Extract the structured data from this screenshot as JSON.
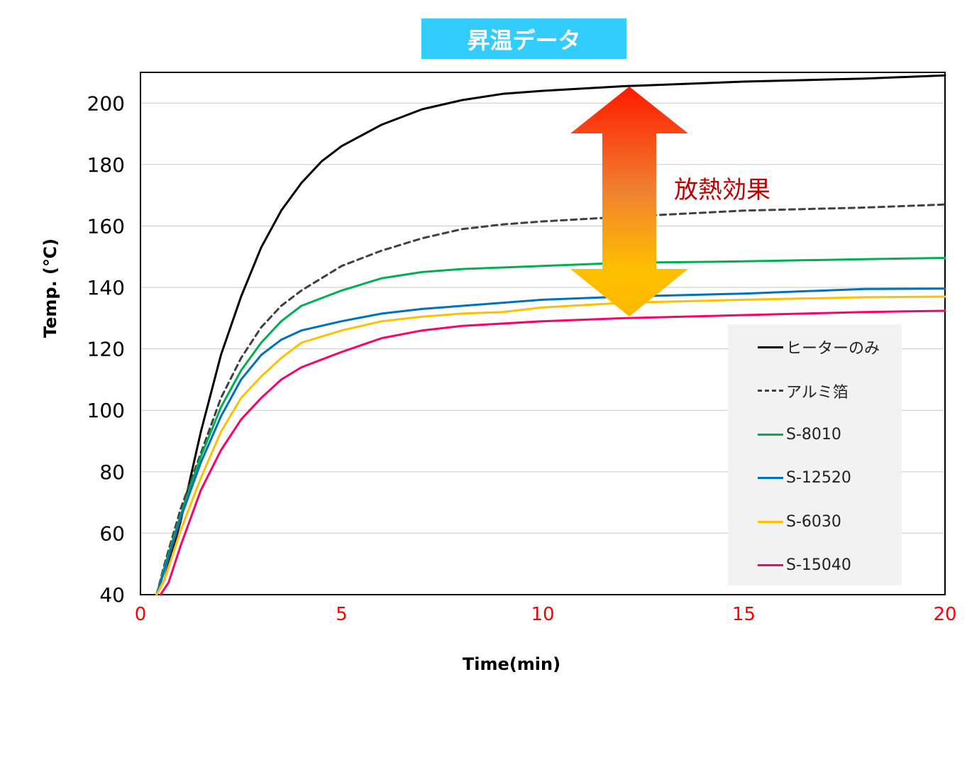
{
  "header": {
    "title": "昇温データ"
  },
  "annotation": {
    "text": "放熱効果"
  },
  "chart_data": {
    "type": "line",
    "xlabel": "Time(min)",
    "ylabel": "Temp. (℃)",
    "xlim": [
      0,
      20
    ],
    "ylim": [
      40,
      210
    ],
    "x_ticks": [
      0,
      5,
      10,
      15,
      20
    ],
    "y_ticks": [
      40,
      60,
      80,
      100,
      120,
      140,
      160,
      180,
      200
    ],
    "grid": "horizontal",
    "legend_position": "bottom-right",
    "series": [
      {
        "name": "ヒーターのみ",
        "color": "#000000",
        "dash": "solid",
        "points": [
          [
            0.4,
            40
          ],
          [
            0.6,
            45
          ],
          [
            1.0,
            64
          ],
          [
            1.5,
            93
          ],
          [
            2.0,
            118
          ],
          [
            2.5,
            137
          ],
          [
            3.0,
            153
          ],
          [
            3.5,
            165
          ],
          [
            4.0,
            174
          ],
          [
            4.5,
            181
          ],
          [
            5.0,
            186
          ],
          [
            6.0,
            193
          ],
          [
            7.0,
            198
          ],
          [
            8.0,
            201
          ],
          [
            9.0,
            203
          ],
          [
            10.0,
            204
          ],
          [
            12.0,
            205.5
          ],
          [
            15.0,
            207
          ],
          [
            18.0,
            208
          ],
          [
            20.0,
            209
          ]
        ]
      },
      {
        "name": "アルミ箔",
        "color": "#404040",
        "dash": "dashed",
        "points": [
          [
            0.4,
            40
          ],
          [
            0.6,
            50
          ],
          [
            1.0,
            68
          ],
          [
            1.5,
            86
          ],
          [
            2.0,
            104
          ],
          [
            2.5,
            117
          ],
          [
            3.0,
            127
          ],
          [
            3.5,
            134
          ],
          [
            4.0,
            139
          ],
          [
            5.0,
            147
          ],
          [
            6.0,
            152
          ],
          [
            7.0,
            156
          ],
          [
            8.0,
            159
          ],
          [
            9.0,
            160.5
          ],
          [
            10.0,
            161.5
          ],
          [
            12.0,
            163
          ],
          [
            15.0,
            165
          ],
          [
            18.0,
            166
          ],
          [
            20.0,
            167
          ]
        ]
      },
      {
        "name": "S-8010",
        "color": "#00b050",
        "dash": "solid",
        "points": [
          [
            0.4,
            40
          ],
          [
            0.6,
            49
          ],
          [
            1.0,
            66
          ],
          [
            1.5,
            85
          ],
          [
            2.0,
            101
          ],
          [
            2.5,
            113
          ],
          [
            3.0,
            122
          ],
          [
            3.5,
            129
          ],
          [
            4.0,
            134
          ],
          [
            5.0,
            139
          ],
          [
            6.0,
            143
          ],
          [
            7.0,
            145
          ],
          [
            8.0,
            146
          ],
          [
            10.0,
            147
          ],
          [
            12.0,
            148
          ],
          [
            15.0,
            148.5
          ],
          [
            18.0,
            149.2
          ],
          [
            20.0,
            149.6
          ]
        ]
      },
      {
        "name": "S-12520",
        "color": "#0070c0",
        "dash": "solid",
        "points": [
          [
            0.4,
            40
          ],
          [
            0.6,
            48
          ],
          [
            1.0,
            65
          ],
          [
            1.5,
            83
          ],
          [
            2.0,
            98
          ],
          [
            2.5,
            110
          ],
          [
            3.0,
            118
          ],
          [
            3.5,
            123
          ],
          [
            4.0,
            126
          ],
          [
            5.0,
            129
          ],
          [
            6.0,
            131.5
          ],
          [
            7.0,
            133
          ],
          [
            8.0,
            134
          ],
          [
            10.0,
            136
          ],
          [
            12.0,
            137
          ],
          [
            15.0,
            138
          ],
          [
            18.0,
            139.5
          ],
          [
            20.0,
            139.6
          ]
        ]
      },
      {
        "name": "S-6030",
        "color": "#ffc000",
        "dash": "solid",
        "points": [
          [
            0.4,
            40
          ],
          [
            0.6,
            45
          ],
          [
            1.0,
            61
          ],
          [
            1.5,
            78
          ],
          [
            2.0,
            93
          ],
          [
            2.5,
            104
          ],
          [
            3.0,
            111
          ],
          [
            3.5,
            117
          ],
          [
            4.0,
            122
          ],
          [
            5.0,
            126
          ],
          [
            6.0,
            129
          ],
          [
            7.0,
            130.5
          ],
          [
            8.0,
            131.5
          ],
          [
            9.0,
            132
          ],
          [
            10.0,
            133.5
          ],
          [
            12.0,
            135
          ],
          [
            15.0,
            136
          ],
          [
            18.0,
            136.8
          ],
          [
            20.0,
            137
          ]
        ]
      },
      {
        "name": "S-15040",
        "color": "#ff0066",
        "dash": "solid",
        "points": [
          [
            0.5,
            40
          ],
          [
            0.7,
            44
          ],
          [
            1.0,
            56
          ],
          [
            1.5,
            74
          ],
          [
            2.0,
            87
          ],
          [
            2.5,
            97
          ],
          [
            3.0,
            104
          ],
          [
            3.5,
            110
          ],
          [
            4.0,
            114
          ],
          [
            5.0,
            119
          ],
          [
            6.0,
            123.5
          ],
          [
            7.0,
            126
          ],
          [
            8.0,
            127.5
          ],
          [
            10.0,
            129
          ],
          [
            12.0,
            130
          ],
          [
            15.0,
            131
          ],
          [
            18.0,
            132
          ],
          [
            20.0,
            132.4
          ]
        ]
      }
    ]
  }
}
